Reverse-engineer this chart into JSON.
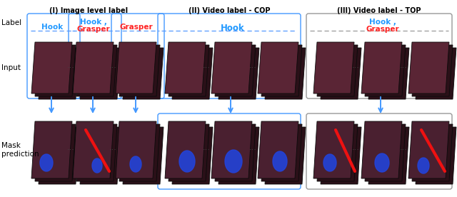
{
  "title_I": "(I) Image level label",
  "title_II": "(II) Video label - COP",
  "title_III": "(III) Video label - TOP",
  "label_row_text": "Label",
  "input_row_text": "Input",
  "mask_row_text": "Mask\nprediction",
  "bg_color": "#ffffff",
  "box_blue": "#4499FF",
  "box_gray": "#999999",
  "arrow_color": "#4499FF",
  "dashed_color": "#5599FF",
  "hook_color": "#2299FF",
  "grasper_color": "#FF2222",
  "tissue_back": "#2a1018",
  "tissue_front": "#5a2535",
  "tissue_mid": "#3d1a25",
  "mask_front": "#4a2030",
  "title_fontsize": 7.0,
  "label_fontsize": 7.5,
  "row_label_fontsize": 7.5,
  "dots_fontsize": 8
}
